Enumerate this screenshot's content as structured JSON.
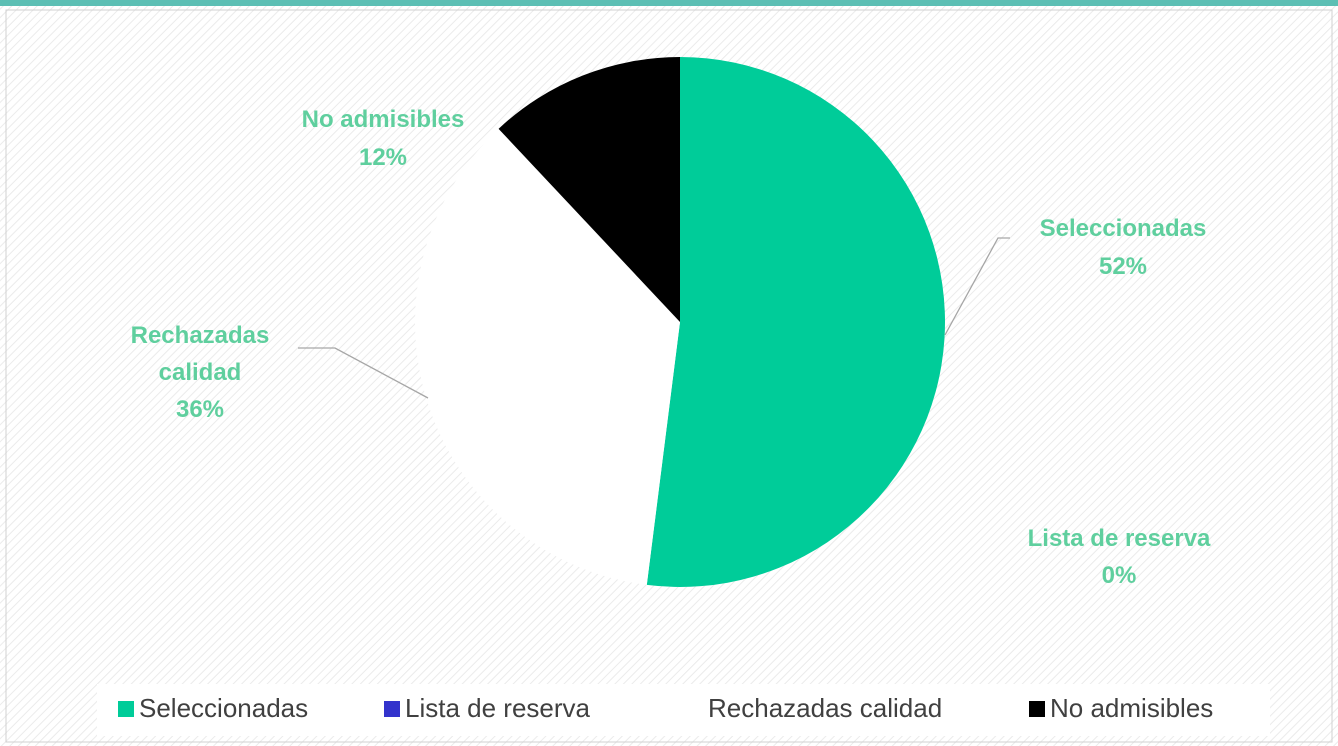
{
  "chart_data": {
    "type": "pie",
    "categories": [
      "Seleccionadas",
      "Lista de reserva",
      "Rechazadas calidad",
      "No admisibles"
    ],
    "values": [
      52,
      0,
      36,
      12
    ],
    "value_labels": [
      "52%",
      "0%",
      "36%",
      "12%"
    ],
    "colors": [
      "#00cc99",
      "#3333cc",
      "#ffffff",
      "#000000"
    ],
    "legend": "bottom"
  }
}
